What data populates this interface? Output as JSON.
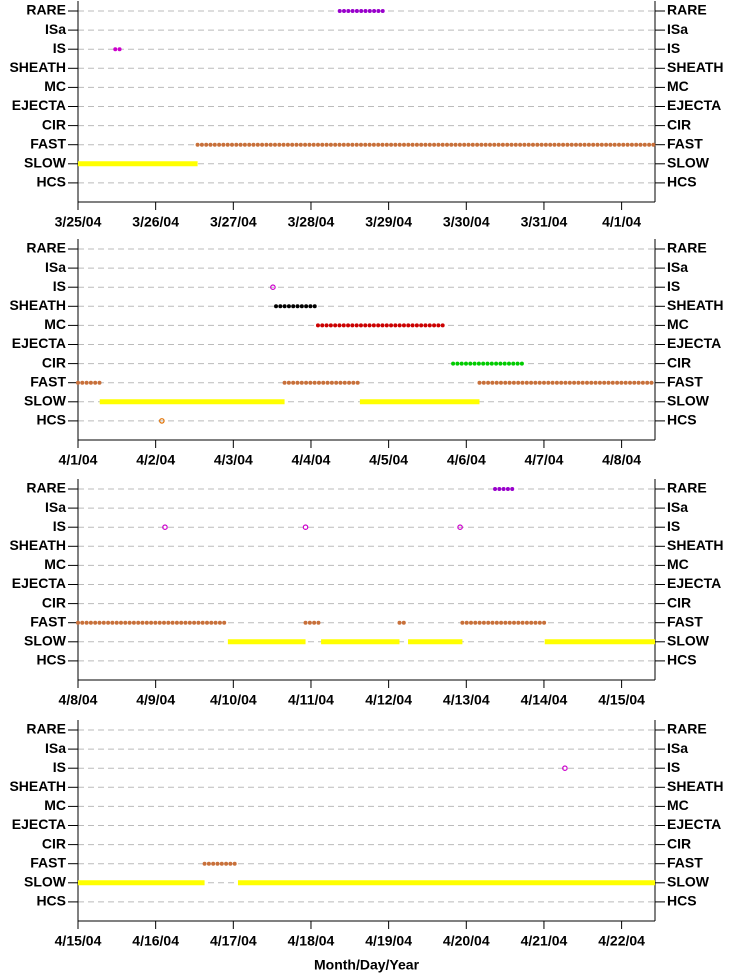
{
  "chart_data": [
    {
      "type": "timeline",
      "categories": [
        "RARE",
        "ISa",
        "IS",
        "SHEATH",
        "MC",
        "EJECTA",
        "CIR",
        "FAST",
        "SLOW",
        "HCS"
      ],
      "category_colors": {
        "RARE": "#9900cc",
        "ISa": "#9900cc",
        "IS": "#cc00cc",
        "SHEATH": "#000000",
        "MC": "#cc0000",
        "EJECTA": "#0000cc",
        "CIR": "#00cc00",
        "FAST": "#c8703a",
        "SLOW": "#ffff00",
        "HCS": "#e07000"
      },
      "grid": true,
      "xlim": [
        85,
        92.43
      ],
      "xticks": [
        {
          "value": 85,
          "label": "3/25/04"
        },
        {
          "value": 86,
          "label": "3/26/04"
        },
        {
          "value": 87,
          "label": "3/27/04"
        },
        {
          "value": 88,
          "label": "3/28/04"
        },
        {
          "value": 89,
          "label": "3/29/04"
        },
        {
          "value": 90,
          "label": "3/30/04"
        },
        {
          "value": 91,
          "label": "3/31/04"
        },
        {
          "value": 92,
          "label": "4/1/04"
        }
      ],
      "segments": [
        {
          "category": "RARE",
          "start": 88.37,
          "end": 88.95
        },
        {
          "category": "IS",
          "start": 85.48,
          "end": 85.57
        },
        {
          "category": "FAST",
          "start": 86.54,
          "end": 92.43
        },
        {
          "category": "SLOW",
          "start": 85.0,
          "end": 86.54
        }
      ]
    },
    {
      "type": "timeline",
      "categories": [
        "RARE",
        "ISa",
        "IS",
        "SHEATH",
        "MC",
        "EJECTA",
        "CIR",
        "FAST",
        "SLOW",
        "HCS"
      ],
      "category_colors": {
        "RARE": "#9900cc",
        "ISa": "#9900cc",
        "IS": "#cc00cc",
        "SHEATH": "#000000",
        "MC": "#cc0000",
        "EJECTA": "#0000cc",
        "CIR": "#00cc00",
        "FAST": "#c8703a",
        "SLOW": "#ffff00",
        "HCS": "#e07000"
      },
      "grid": true,
      "xlim": [
        92,
        99.43
      ],
      "xticks": [
        {
          "value": 92,
          "label": "4/1/04"
        },
        {
          "value": 93,
          "label": "4/2/04"
        },
        {
          "value": 94,
          "label": "4/3/04"
        },
        {
          "value": 95,
          "label": "4/4/04"
        },
        {
          "value": 96,
          "label": "4/5/04"
        },
        {
          "value": 97,
          "label": "4/6/04"
        },
        {
          "value": 98,
          "label": "4/7/04"
        },
        {
          "value": 99,
          "label": "4/8/04"
        }
      ],
      "segments": [
        {
          "category": "FAST",
          "start": 92.0,
          "end": 92.28
        },
        {
          "category": "SLOW",
          "start": 92.28,
          "end": 94.66
        },
        {
          "category": "HCS",
          "start": 93.08,
          "end": 93.08
        },
        {
          "category": "IS",
          "start": 94.51,
          "end": 94.51
        },
        {
          "category": "SHEATH",
          "start": 94.55,
          "end": 95.09
        },
        {
          "category": "MC",
          "start": 95.09,
          "end": 96.7
        },
        {
          "category": "FAST",
          "start": 94.66,
          "end": 95.63
        },
        {
          "category": "SLOW",
          "start": 95.63,
          "end": 97.17
        },
        {
          "category": "CIR",
          "start": 96.83,
          "end": 97.73
        },
        {
          "category": "FAST",
          "start": 97.17,
          "end": 99.43
        }
      ]
    },
    {
      "type": "timeline",
      "categories": [
        "RARE",
        "ISa",
        "IS",
        "SHEATH",
        "MC",
        "EJECTA",
        "CIR",
        "FAST",
        "SLOW",
        "HCS"
      ],
      "category_colors": {
        "RARE": "#9900cc",
        "ISa": "#9900cc",
        "IS": "#cc00cc",
        "SHEATH": "#000000",
        "MC": "#cc0000",
        "EJECTA": "#0000cc",
        "CIR": "#00cc00",
        "FAST": "#c8703a",
        "SLOW": "#ffff00",
        "HCS": "#e07000"
      },
      "grid": true,
      "xlim": [
        99,
        106.43
      ],
      "xticks": [
        {
          "value": 99,
          "label": "4/8/04"
        },
        {
          "value": 100,
          "label": "4/9/04"
        },
        {
          "value": 101,
          "label": "4/10/04"
        },
        {
          "value": 102,
          "label": "4/11/04"
        },
        {
          "value": 103,
          "label": "4/12/04"
        },
        {
          "value": 104,
          "label": "4/13/04"
        },
        {
          "value": 105,
          "label": "4/14/04"
        },
        {
          "value": 106,
          "label": "4/15/04"
        }
      ],
      "segments": [
        {
          "category": "RARE",
          "start": 104.37,
          "end": 104.6
        },
        {
          "category": "IS",
          "start": 100.12,
          "end": 100.12
        },
        {
          "category": "IS",
          "start": 101.93,
          "end": 101.93
        },
        {
          "category": "IS",
          "start": 103.92,
          "end": 103.92
        },
        {
          "category": "FAST",
          "start": 99.0,
          "end": 100.93
        },
        {
          "category": "SLOW",
          "start": 100.93,
          "end": 101.93
        },
        {
          "category": "FAST",
          "start": 101.93,
          "end": 102.13
        },
        {
          "category": "SLOW",
          "start": 102.13,
          "end": 103.14
        },
        {
          "category": "FAST",
          "start": 103.14,
          "end": 103.25
        },
        {
          "category": "SLOW",
          "start": 103.25,
          "end": 103.95
        },
        {
          "category": "FAST",
          "start": 103.95,
          "end": 105.01
        },
        {
          "category": "SLOW",
          "start": 105.01,
          "end": 106.43
        }
      ]
    },
    {
      "type": "timeline",
      "categories": [
        "RARE",
        "ISa",
        "IS",
        "SHEATH",
        "MC",
        "EJECTA",
        "CIR",
        "FAST",
        "SLOW",
        "HCS"
      ],
      "category_colors": {
        "RARE": "#9900cc",
        "ISa": "#9900cc",
        "IS": "#cc00cc",
        "SHEATH": "#000000",
        "MC": "#cc0000",
        "EJECTA": "#0000cc",
        "CIR": "#00cc00",
        "FAST": "#c8703a",
        "SLOW": "#ffff00",
        "HCS": "#e07000"
      },
      "grid": true,
      "xlim": [
        106,
        113.43
      ],
      "xticks": [
        {
          "value": 106,
          "label": "4/15/04"
        },
        {
          "value": 107,
          "label": "4/16/04"
        },
        {
          "value": 108,
          "label": "4/17/04"
        },
        {
          "value": 109,
          "label": "4/18/04"
        },
        {
          "value": 110,
          "label": "4/19/04"
        },
        {
          "value": 111,
          "label": "4/20/04"
        },
        {
          "value": 112,
          "label": "4/21/04"
        },
        {
          "value": 113,
          "label": "4/22/04"
        }
      ],
      "xlabel": "Month/Day/Year",
      "segments": [
        {
          "category": "SLOW",
          "start": 106.0,
          "end": 107.63
        },
        {
          "category": "FAST",
          "start": 107.63,
          "end": 108.06
        },
        {
          "category": "SLOW",
          "start": 108.06,
          "end": 113.43
        },
        {
          "category": "IS",
          "start": 112.27,
          "end": 112.27
        }
      ]
    }
  ]
}
